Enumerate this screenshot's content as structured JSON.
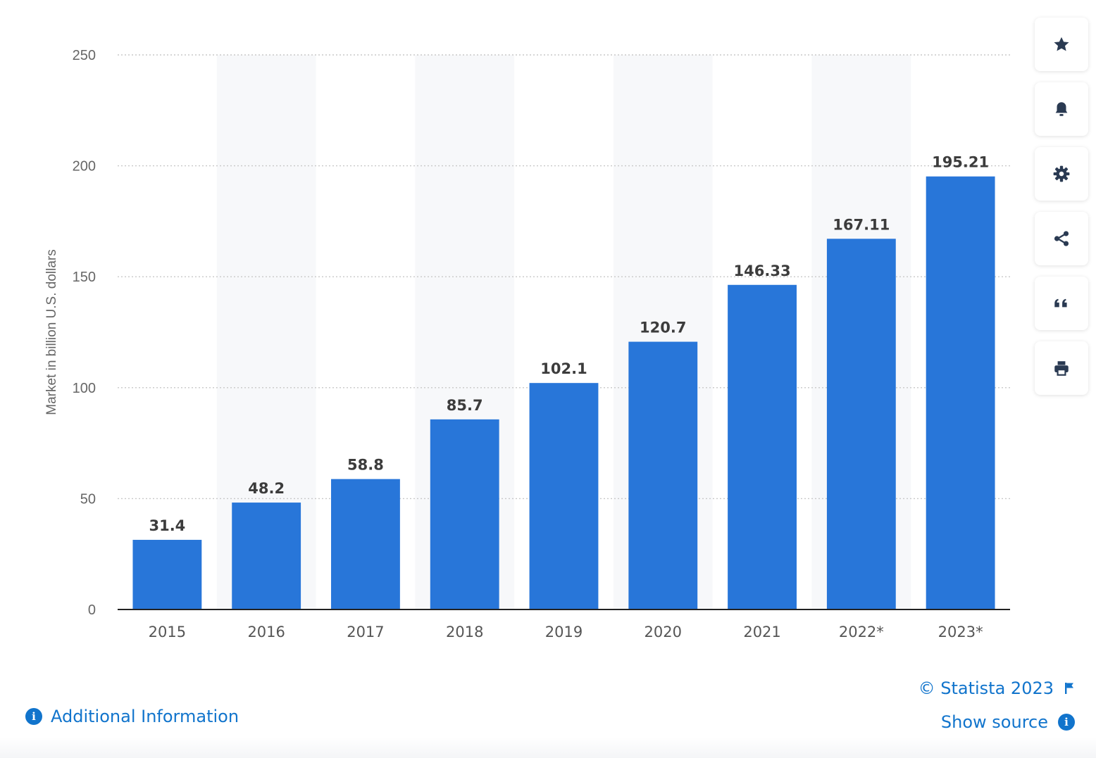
{
  "chart_data": {
    "type": "bar",
    "categories": [
      "2015",
      "2016",
      "2017",
      "2018",
      "2019",
      "2020",
      "2021",
      "2022*",
      "2023*"
    ],
    "values": [
      31.4,
      48.2,
      58.8,
      85.7,
      102.1,
      120.7,
      146.33,
      167.11,
      195.21
    ],
    "value_labels": [
      "31.4",
      "48.2",
      "58.8",
      "85.7",
      "102.1",
      "120.7",
      "146.33",
      "167.11",
      "195.21"
    ],
    "ylabel": "Market in billion U.S. dollars",
    "xlabel": "",
    "ylim": [
      0,
      250
    ],
    "yticks": [
      0,
      50,
      100,
      150,
      200,
      250
    ],
    "grid": true,
    "bar_color": "#2876d9"
  },
  "sidebar": {
    "buttons": [
      {
        "name": "star-icon"
      },
      {
        "name": "bell-icon"
      },
      {
        "name": "gear-icon"
      },
      {
        "name": "share-icon"
      },
      {
        "name": "quote-icon"
      },
      {
        "name": "print-icon"
      }
    ]
  },
  "footer": {
    "copyright": "© Statista 2023",
    "show_source": "Show source",
    "additional_info": "Additional Information",
    "link_color": "#1174cc"
  }
}
